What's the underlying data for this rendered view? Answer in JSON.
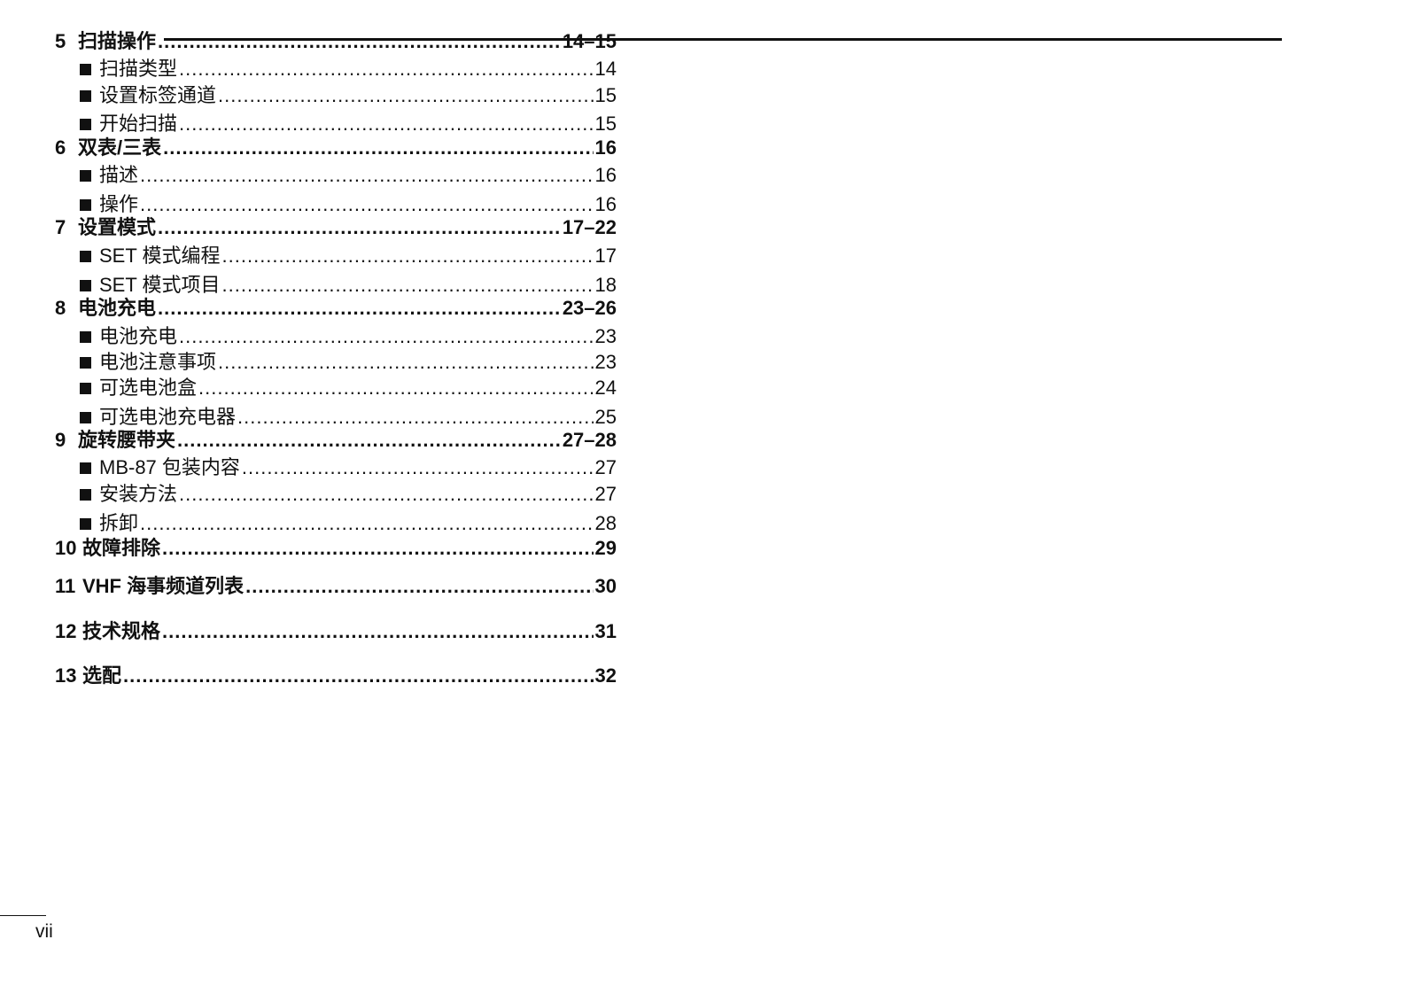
{
  "toc": [
    {
      "level": "main",
      "num": "5",
      "title": "扫描操作",
      "page": "14–15"
    },
    {
      "level": "sub",
      "title": "扫描类型",
      "page": "14"
    },
    {
      "level": "sub",
      "title": "设置标签通道",
      "page": "15"
    },
    {
      "level": "sub",
      "title": "开始扫描",
      "page": "15"
    },
    {
      "level": "main",
      "num": "6",
      "title": "双表/三表",
      "page": "16"
    },
    {
      "level": "sub",
      "title": "描述",
      "page": "16"
    },
    {
      "level": "sub",
      "title": "操作",
      "page": "16"
    },
    {
      "level": "main",
      "num": "7",
      "title": "设置模式",
      "page": "17–22"
    },
    {
      "level": "sub",
      "title": "SET 模式编程",
      "page": "17"
    },
    {
      "level": "sub",
      "title": "SET 模式项目",
      "page": "18"
    },
    {
      "level": "main",
      "num": "8",
      "title": "电池充电",
      "page": "23–26"
    },
    {
      "level": "sub",
      "title": "电池充电",
      "page": "23"
    },
    {
      "level": "sub",
      "title": "电池注意事项",
      "page": "23"
    },
    {
      "level": "sub",
      "title": "可选电池盒",
      "page": "24"
    },
    {
      "level": "sub",
      "title": "可选电池充电器",
      "page": "25"
    },
    {
      "level": "main",
      "num": "9",
      "title": "旋转腰带夹",
      "page": "27–28"
    },
    {
      "level": "sub",
      "title": "MB-87 包装内容",
      "page": "27"
    },
    {
      "level": "sub",
      "title": "安装方法",
      "page": "27"
    },
    {
      "level": "sub",
      "title": "拆卸",
      "page": "28"
    },
    {
      "level": "main",
      "num": "10",
      "title": "故障排除",
      "page": "29"
    },
    {
      "level": "main",
      "num": "11",
      "title": "VHF 海事频道列表",
      "page": "30"
    },
    {
      "level": "main",
      "num": "12",
      "title": "技术规格",
      "page": "31"
    },
    {
      "level": "main",
      "num": "13",
      "title": "选配",
      "page": "32"
    }
  ],
  "folio": "vii"
}
